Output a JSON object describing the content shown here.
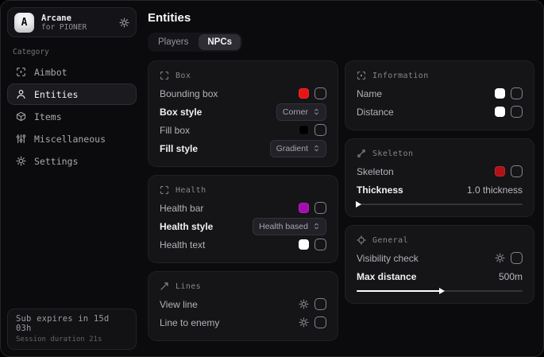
{
  "sidebar": {
    "logo_letter": "A",
    "app_name": "Arcane",
    "app_subtitle": "for PIONER",
    "category_label": "Category",
    "items": [
      {
        "label": "Aimbot"
      },
      {
        "label": "Entities"
      },
      {
        "label": "Items"
      },
      {
        "label": "Miscellaneous"
      },
      {
        "label": "Settings"
      }
    ],
    "active_item": "Entities",
    "footer": {
      "line1": "Sub expires in 15d 03h",
      "line2": "Session duration 21s"
    }
  },
  "header": {
    "title": "Entities",
    "tabs": [
      {
        "label": "Players"
      },
      {
        "label": "NPCs"
      }
    ],
    "active_tab": "NPCs"
  },
  "cards": {
    "box": {
      "title": "Box",
      "rows": [
        {
          "label": "Bounding box",
          "swatch": "#e81313",
          "checked": false
        },
        {
          "label": "Box style",
          "dropdown": "Corner"
        },
        {
          "label": "Fill box",
          "swatch": "#000000",
          "checked": false
        },
        {
          "label": "Fill style",
          "dropdown": "Gradient"
        }
      ]
    },
    "health": {
      "title": "Health",
      "rows": [
        {
          "label": "Health bar",
          "swatch": "#a50cb0",
          "checked": false
        },
        {
          "label": "Health style",
          "dropdown": "Health based"
        },
        {
          "label": "Health text",
          "swatch": "#ffffff",
          "checked": false
        }
      ]
    },
    "lines": {
      "title": "Lines",
      "rows": [
        {
          "label": "View line",
          "checked": false
        },
        {
          "label": "Line to enemy",
          "checked": false
        }
      ]
    },
    "information": {
      "title": "Information",
      "rows": [
        {
          "label": "Name",
          "swatch": "#ffffff",
          "checked": false
        },
        {
          "label": "Distance",
          "swatch": "#ffffff",
          "checked": false
        }
      ]
    },
    "skeleton": {
      "title": "Skeleton",
      "rows": [
        {
          "label": "Skeleton",
          "swatch": "#b11216",
          "checked": false
        }
      ],
      "slider": {
        "label": "Thickness",
        "value": "1.0 thickness",
        "pct": 2
      }
    },
    "general": {
      "title": "General",
      "rows": [
        {
          "label": "Visibility check",
          "checked": false
        }
      ],
      "slider": {
        "label": "Max distance",
        "value": "500m",
        "pct": 52
      }
    }
  }
}
